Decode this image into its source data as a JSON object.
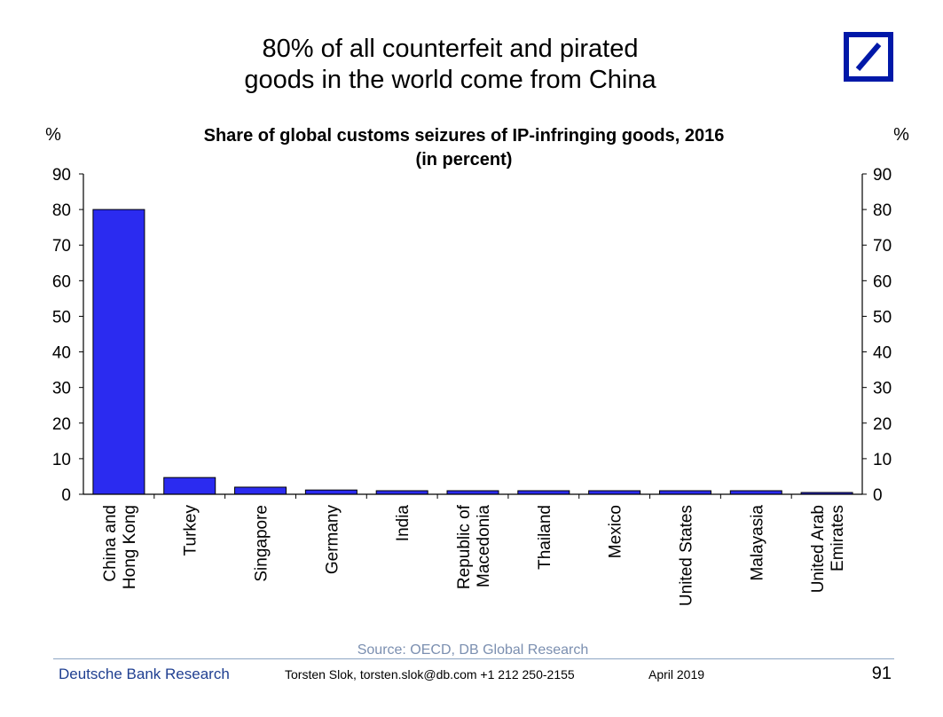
{
  "slide": {
    "title_line1": "80% of all counterfeit and pirated",
    "title_line2": "goods in the world come from China"
  },
  "logo": {
    "name": "deutsche-bank-logo",
    "color": "#0018a8"
  },
  "chart_data": {
    "type": "bar",
    "title": "Share of global customs seizures of IP-infringing goods, 2016",
    "subtitle": "(in percent)",
    "ylabel_left": "%",
    "ylabel_right": "%",
    "ylim": [
      0,
      90
    ],
    "yticks": [
      0,
      10,
      20,
      30,
      40,
      50,
      60,
      70,
      80,
      90
    ],
    "grid": false,
    "bar_color": "#2b2bf0",
    "categories": [
      [
        "China and",
        "Hong Kong"
      ],
      [
        "Turkey"
      ],
      [
        "Singapore"
      ],
      [
        "Germany"
      ],
      [
        "India"
      ],
      [
        "Republic of",
        "Macedonia"
      ],
      [
        "Thailand"
      ],
      [
        "Mexico"
      ],
      [
        "United States"
      ],
      [
        "Malayasia"
      ],
      [
        "United Arab",
        "Emirates"
      ]
    ],
    "values": [
      80,
      4.7,
      2.0,
      1.2,
      1.0,
      1.0,
      1.0,
      1.0,
      1.0,
      1.0,
      0.5
    ],
    "source": "Source: OECD, DB Global Research"
  },
  "footer": {
    "brand": "Deutsche Bank Research",
    "author": "Torsten Slok, torsten.slok@db.com  +1 212 250-2155",
    "date": "April 2019",
    "page": "91"
  }
}
